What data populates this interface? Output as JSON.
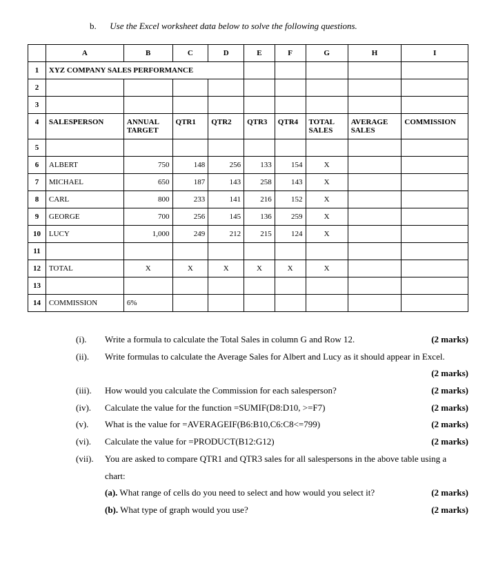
{
  "intro": {
    "label": "b.",
    "text": "Use the Excel worksheet data below to solve the following questions."
  },
  "columns": [
    "A",
    "B",
    "C",
    "D",
    "E",
    "F",
    "G",
    "H",
    "I"
  ],
  "title_row": {
    "num": "1",
    "text": "XYZ COMPANY SALES PERFORMANCE"
  },
  "blank_rows_a": [
    "2",
    "3"
  ],
  "header_row": {
    "num": "4",
    "cells": [
      "SALESPERSON",
      "ANNUAL TARGET",
      "QTR1",
      "QTR2",
      "QTR3",
      "QTR4",
      "TOTAL SALES",
      "AVERAGE SALES",
      "COMMISSION"
    ]
  },
  "blank_row_b": "5",
  "data_rows": [
    {
      "num": "6",
      "name": "ALBERT",
      "b": "750",
      "c": "148",
      "d": "256",
      "e": "133",
      "f": "154",
      "g": "X"
    },
    {
      "num": "7",
      "name": "MICHAEL",
      "b": "650",
      "c": "187",
      "d": "143",
      "e": "258",
      "f": "143",
      "g": "X"
    },
    {
      "num": "8",
      "name": "CARL",
      "b": "800",
      "c": "233",
      "d": "141",
      "e": "216",
      "f": "152",
      "g": "X"
    },
    {
      "num": "9",
      "name": "GEORGE",
      "b": "700",
      "c": "256",
      "d": "145",
      "e": "136",
      "f": "259",
      "g": "X"
    },
    {
      "num": "10",
      "name": "LUCY",
      "b": "1,000",
      "c": "249",
      "d": "212",
      "e": "215",
      "f": "124",
      "g": "X"
    }
  ],
  "blank_row_c": "11",
  "total_row": {
    "num": "12",
    "label": "TOTAL",
    "b": "X",
    "c": "X",
    "d": "X",
    "e": "X",
    "f": "X",
    "g": "X"
  },
  "blank_row_d": "13",
  "commission_row": {
    "num": "14",
    "label": "COMMISSION",
    "value": "6%"
  },
  "questions": [
    {
      "num": "(i).",
      "text": "Write a formula to calculate the Total Sales in column G and Row 12.",
      "marks": "(2 marks)",
      "inline_marks": true
    },
    {
      "num": "(ii).",
      "text": "Write formulas to calculate the Average Sales for Albert and Lucy as it should appear in Excel.",
      "marks": "(2 marks)",
      "inline_marks": false
    },
    {
      "num": "(iii).",
      "text": "How would you calculate the Commission for each salesperson?",
      "marks": "(2 marks)",
      "inline_marks": true
    },
    {
      "num": "(iv).",
      "text": "Calculate the value for the function =SUMIF(D8:D10, >=F7)",
      "marks": "(2 marks)",
      "inline_marks": true
    },
    {
      "num": "(v).",
      "text": " What is the value for =AVERAGEIF(B6:B10,C6:C8<=799)",
      "marks": "(2 marks)",
      "inline_marks": true
    },
    {
      "num": "(vi).",
      "text": "Calculate the value for =PRODUCT(B12:G12)",
      "marks": "(2 marks)",
      "inline_marks": true
    }
  ],
  "q7": {
    "num": "(vii).",
    "text": "You are asked to compare QTR1 and QTR3 sales for all salespersons in the above table using a chart:",
    "subs": [
      {
        "label": "(a).",
        "text": "What range of cells do you need to select and how would you select it?",
        "marks": "(2 marks)"
      },
      {
        "label": "(b).",
        "text": "What type of graph would you use?",
        "marks": "(2 marks)"
      }
    ]
  },
  "col_widths": {
    "rownum": 22,
    "A": 96,
    "B": 60,
    "C": 44,
    "D": 44,
    "E": 38,
    "F": 38,
    "G": 52,
    "H": 66,
    "I": 82
  }
}
